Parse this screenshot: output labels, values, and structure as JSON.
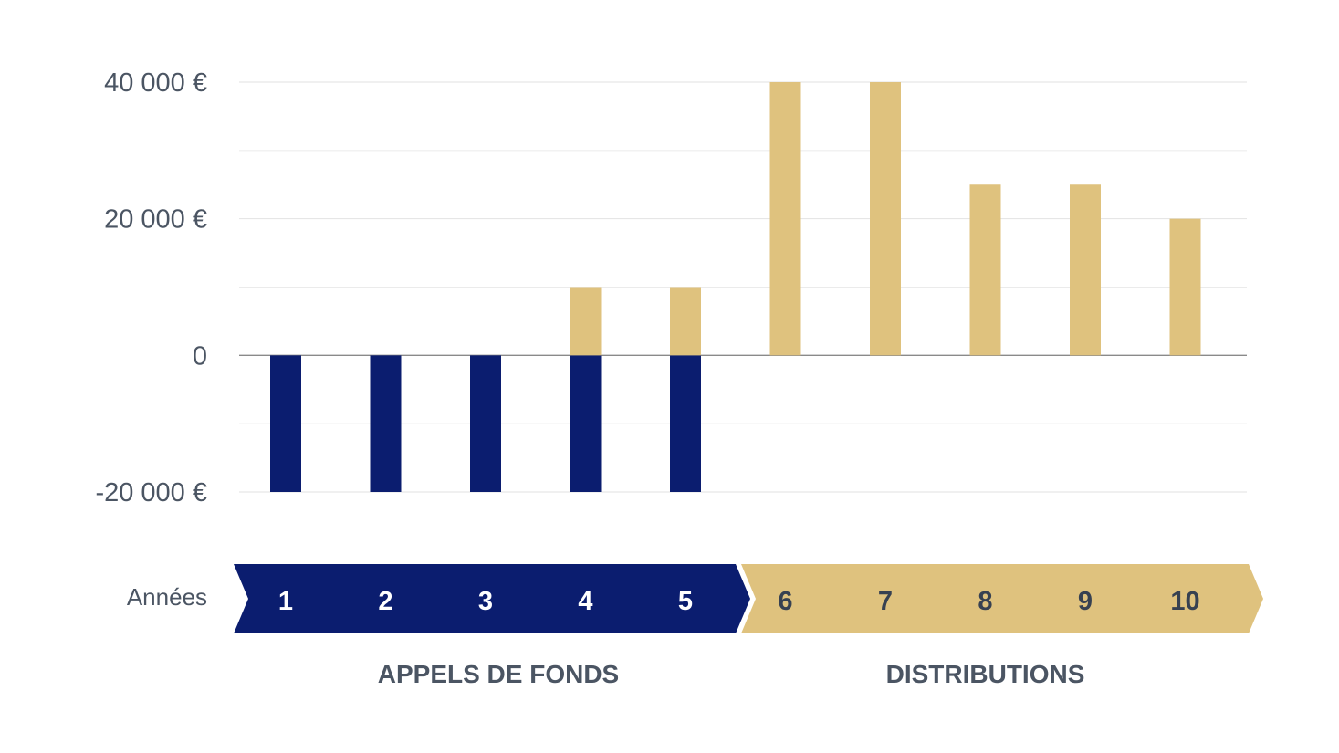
{
  "chart_data": {
    "type": "bar",
    "xlabel": "Années",
    "categories": [
      "1",
      "2",
      "3",
      "4",
      "5",
      "6",
      "7",
      "8",
      "9",
      "10"
    ],
    "series": [
      {
        "values": [
          -20000,
          -20000,
          -20000,
          -20000,
          -20000,
          0,
          0,
          0,
          0,
          0
        ],
        "color": "#0b1d6f"
      },
      {
        "values": [
          0,
          0,
          0,
          10000,
          10000,
          40000,
          40000,
          25000,
          25000,
          20000
        ],
        "color": "#dfc27e"
      }
    ],
    "ylim": [
      -20000,
      40000
    ],
    "yticks": [
      {
        "value": 40000,
        "label": "40 000 €"
      },
      {
        "value": 20000,
        "label": "20 000 €"
      },
      {
        "value": 0,
        "label": "0"
      },
      {
        "value": -20000,
        "label": "-20 000 €"
      }
    ],
    "minor_gridlines": [
      30000,
      10000,
      -10000
    ],
    "phases": [
      {
        "label": "APPELS DE FONDS",
        "years": [
          "1",
          "2",
          "3",
          "4",
          "5"
        ],
        "color": "#0b1d6f",
        "text_color": "#ffffff"
      },
      {
        "label": "DISTRIBUTIONS",
        "years": [
          "6",
          "7",
          "8",
          "9",
          "10"
        ],
        "color": "#dfc27e",
        "text_color": "#374151"
      }
    ],
    "grid": true,
    "legend": "none"
  }
}
